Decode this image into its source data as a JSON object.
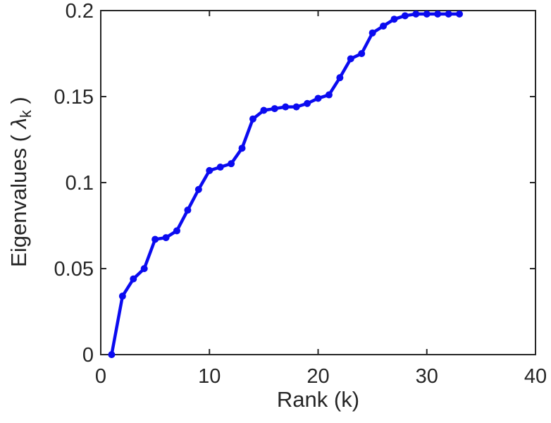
{
  "chart_data": {
    "type": "line",
    "series_name": "eigenvalues",
    "x": [
      1,
      2,
      3,
      4,
      5,
      6,
      7,
      8,
      9,
      10,
      11,
      12,
      13,
      14,
      15,
      16,
      17,
      18,
      19,
      20,
      21,
      22,
      23,
      24,
      25,
      26,
      27,
      28,
      29,
      30,
      31,
      32,
      33
    ],
    "y": [
      0.0,
      0.034,
      0.044,
      0.05,
      0.067,
      0.068,
      0.072,
      0.084,
      0.096,
      0.107,
      0.109,
      0.111,
      0.12,
      0.137,
      0.142,
      0.143,
      0.144,
      0.144,
      0.146,
      0.149,
      0.151,
      0.161,
      0.172,
      0.175,
      0.187,
      0.191,
      0.195,
      0.197,
      0.198,
      0.198,
      0.198,
      0.198,
      0.198
    ],
    "title": "",
    "xlabel": "Rank (k)",
    "ylabel_prefix": "Eigenvalues ( ",
    "ylabel_symbol": "λ",
    "ylabel_subscript": "k",
    "ylabel_suffix": " )",
    "xlim": [
      0,
      40
    ],
    "ylim": [
      0,
      0.2
    ],
    "xticks": {
      "values": [
        0,
        10,
        20,
        30,
        40
      ],
      "labels": [
        "0",
        "10",
        "20",
        "30",
        "40"
      ]
    },
    "yticks": {
      "values": [
        0,
        0.05,
        0.1,
        0.15,
        0.2
      ],
      "labels": [
        "0",
        "0.05",
        "0.1",
        "0.15",
        "0.2"
      ]
    },
    "grid": false,
    "legend": "none",
    "box": "on",
    "tick_direction": "in",
    "line_color": "#0b0bf0",
    "axis_color": "#262626",
    "background_color": "#ffffff",
    "line_width": 4.5,
    "marker": "circle",
    "marker_radius": 5
  }
}
